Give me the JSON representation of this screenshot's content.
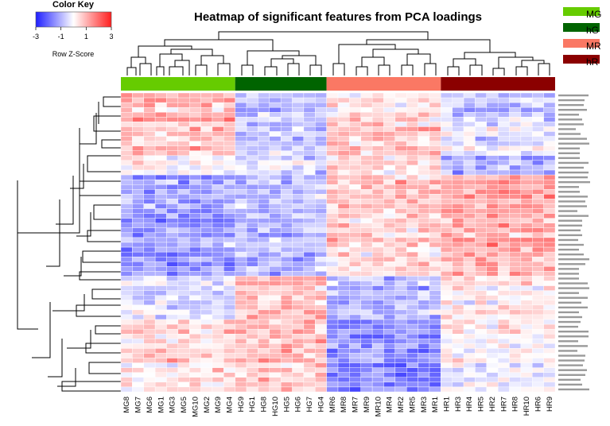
{
  "chart_data": {
    "type": "heatmap",
    "title": "Heatmap of significant features from PCA loadings",
    "color_key": {
      "title": "Color Key",
      "label": "Row Z-Score",
      "ticks": [
        -3,
        -1,
        1,
        3
      ],
      "range": [
        -3,
        3
      ],
      "low_color": "#1f1fff",
      "mid_color": "#ffffff",
      "high_color": "#ff1f1f"
    },
    "columns": [
      "MG8",
      "MG7",
      "MG6",
      "MG1",
      "MG3",
      "MG5",
      "MG10",
      "MG2",
      "MG9",
      "MG4",
      "HG9",
      "HG1",
      "HG8",
      "HG10",
      "HG5",
      "HG6",
      "HG7",
      "HG4",
      "MR6",
      "MR8",
      "MR7",
      "MR9",
      "MR10",
      "MR4",
      "MR2",
      "MR5",
      "MR3",
      "MR1",
      "HR1",
      "HR3",
      "HR4",
      "HR5",
      "HR2",
      "HR7",
      "HR8",
      "HR10",
      "HR6",
      "HR9"
    ],
    "groups": [
      {
        "name": "MG",
        "color": "#66cc00",
        "count": 10
      },
      {
        "name": "hG",
        "color": "#006400",
        "count": 8
      },
      {
        "name": "MR",
        "color": "#fa7864",
        "count": 10
      },
      {
        "name": "hR",
        "color": "#8b0000",
        "count": 10
      }
    ],
    "legend_placement": "top-right",
    "row_count": 62,
    "row_blocks": [
      {
        "rows": 6,
        "means": [
          0.9,
          -0.9,
          0.2,
          -1.0
        ]
      },
      {
        "rows": 7,
        "means": [
          0.8,
          -0.7,
          0.9,
          -0.2
        ]
      },
      {
        "rows": 4,
        "means": [
          0.4,
          -0.3,
          0.6,
          -1.0
        ]
      },
      {
        "rows": 21,
        "means": [
          -1.3,
          -0.9,
          0.6,
          1.1
        ]
      },
      {
        "rows": 9,
        "means": [
          -0.4,
          0.9,
          -0.9,
          0.3
        ]
      },
      {
        "rows": 15,
        "means": [
          0.5,
          0.8,
          -1.5,
          0.0
        ]
      }
    ]
  }
}
